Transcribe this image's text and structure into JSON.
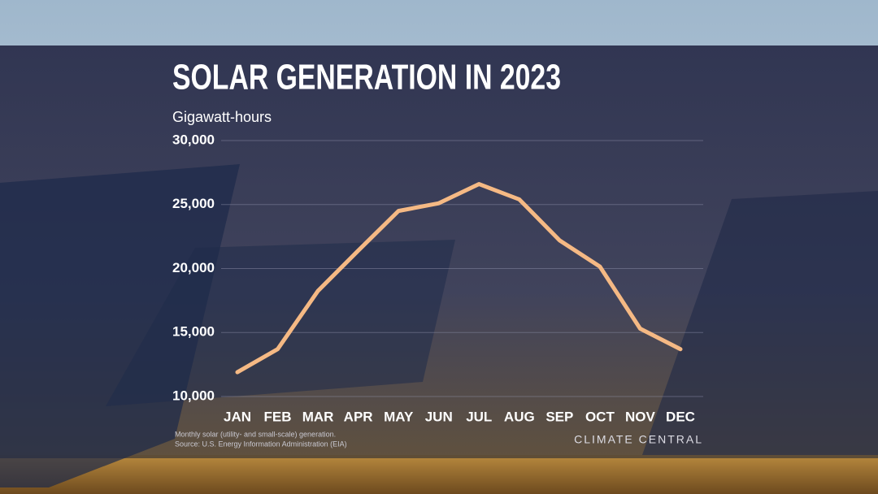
{
  "chart_data": {
    "type": "line",
    "title": "SOLAR GENERATION IN 2023",
    "ylabel": "Gigawatt-hours",
    "categories": [
      "JAN",
      "FEB",
      "MAR",
      "APR",
      "MAY",
      "JUN",
      "JUL",
      "AUG",
      "SEP",
      "OCT",
      "NOV",
      "DEC"
    ],
    "values": [
      11900,
      13700,
      18250,
      21400,
      24500,
      25100,
      26600,
      25400,
      22200,
      20150,
      15300,
      13700
    ],
    "color": "#f5b984",
    "ylim": [
      10000,
      30000
    ],
    "yticks": [
      {
        "value": 10000,
        "label": "10,000"
      },
      {
        "value": 15000,
        "label": "15,000"
      },
      {
        "value": 20000,
        "label": "20,000"
      },
      {
        "value": 25000,
        "label": "25,000"
      },
      {
        "value": 30000,
        "label": "30,000"
      }
    ],
    "grid": true,
    "notes": [
      "Monthly solar (utility- and small-scale) generation.",
      "Source: U.S. Energy Information Administration (EIA)"
    ],
    "logo": "CLIMATE CENTRAL"
  }
}
